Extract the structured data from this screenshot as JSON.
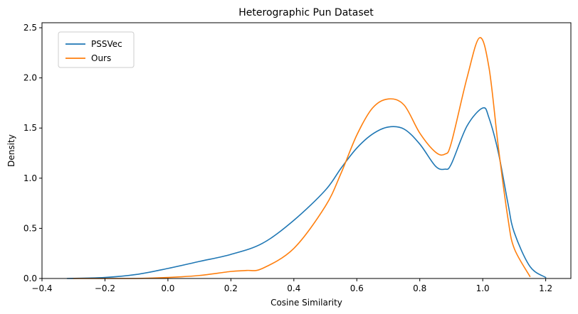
{
  "chart_data": {
    "type": "line",
    "title": "Heterographic Pun Dataset",
    "xlabel": "Cosine Similarity",
    "ylabel": "Density",
    "xlim": [
      -0.4,
      1.28
    ],
    "ylim": [
      0,
      2.55
    ],
    "xticks": [
      -0.4,
      -0.2,
      0.0,
      0.2,
      0.4,
      0.6,
      0.8,
      1.0,
      1.2
    ],
    "xtick_labels": [
      "−0.4",
      "−0.2",
      "0.0",
      "0.2",
      "0.4",
      "0.6",
      "0.8",
      "1.0",
      "1.2"
    ],
    "yticks": [
      0.0,
      0.5,
      1.0,
      1.5,
      2.0,
      2.5
    ],
    "ytick_labels": [
      "0.0",
      "0.5",
      "1.0",
      "1.5",
      "2.0",
      "2.5"
    ],
    "grid": false,
    "legend_position": "upper-left",
    "series": [
      {
        "name": "PSSVec",
        "color": "#1f77b4",
        "x": [
          -0.32,
          -0.2,
          -0.1,
          0.0,
          0.1,
          0.2,
          0.3,
          0.4,
          0.5,
          0.55,
          0.6,
          0.65,
          0.7,
          0.75,
          0.8,
          0.85,
          0.88,
          0.9,
          0.95,
          1.0,
          1.02,
          1.05,
          1.08,
          1.1,
          1.15,
          1.2
        ],
        "y": [
          0.0,
          0.01,
          0.04,
          0.1,
          0.17,
          0.24,
          0.35,
          0.58,
          0.88,
          1.1,
          1.3,
          1.44,
          1.51,
          1.49,
          1.34,
          1.12,
          1.09,
          1.14,
          1.52,
          1.7,
          1.6,
          1.25,
          0.75,
          0.46,
          0.12,
          0.01
        ]
      },
      {
        "name": "Ours",
        "color": "#ff7f0e",
        "x": [
          -0.3,
          -0.2,
          -0.1,
          0.0,
          0.1,
          0.2,
          0.25,
          0.3,
          0.4,
          0.5,
          0.55,
          0.6,
          0.65,
          0.7,
          0.75,
          0.8,
          0.85,
          0.88,
          0.9,
          0.95,
          0.99,
          1.02,
          1.05,
          1.08,
          1.1,
          1.15
        ],
        "y": [
          0.0,
          0.0,
          0.0,
          0.01,
          0.03,
          0.07,
          0.08,
          0.1,
          0.3,
          0.72,
          1.05,
          1.43,
          1.7,
          1.79,
          1.73,
          1.45,
          1.26,
          1.24,
          1.35,
          2.0,
          2.4,
          2.1,
          1.3,
          0.6,
          0.3,
          0.02
        ]
      }
    ]
  }
}
